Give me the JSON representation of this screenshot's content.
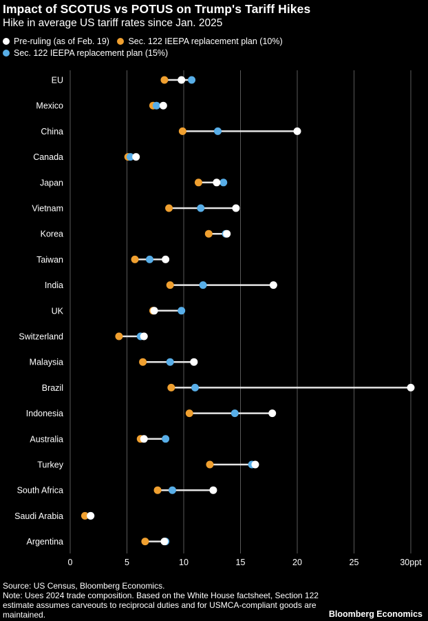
{
  "colors": {
    "background": "#000000",
    "text": "#ffffff",
    "grid": "#5a5a5a",
    "connector": "#e6e6e6",
    "pre_ruling": "#ffffff",
    "sec122_10": "#f0a030",
    "sec122_15": "#58aee8"
  },
  "chart_data": {
    "type": "dot",
    "title": "Impact of SCOTUS vs POTUS on Trump's Tariff Hikes",
    "subtitle": "Hike in average US tariff rates since Jan. 2025",
    "xlim": [
      0,
      30
    ],
    "x_ticks": [
      {
        "value": 0,
        "label": "0"
      },
      {
        "value": 5,
        "label": "5"
      },
      {
        "value": 10,
        "label": "10"
      },
      {
        "value": 15,
        "label": "15"
      },
      {
        "value": 20,
        "label": "20"
      },
      {
        "value": 25,
        "label": "25"
      },
      {
        "value": 30,
        "label": "30ppt"
      }
    ],
    "grid": true,
    "legend_position": "top",
    "categories": [
      "EU",
      "Mexico",
      "China",
      "Canada",
      "Japan",
      "Vietnam",
      "Korea",
      "Taiwan",
      "India",
      "UK",
      "Switzerland",
      "Malaysia",
      "Brazil",
      "Indonesia",
      "Australia",
      "Turkey",
      "South Africa",
      "Saudi Arabia",
      "Argentina"
    ],
    "series": [
      {
        "name": "Pre-ruling (as of Feb. 19)",
        "color_key": "pre_ruling",
        "values": [
          9.8,
          8.2,
          20.0,
          5.8,
          12.9,
          14.6,
          13.8,
          8.4,
          17.9,
          7.4,
          6.5,
          10.9,
          30.0,
          17.8,
          6.5,
          16.3,
          12.6,
          1.8,
          8.3
        ]
      },
      {
        "name": "Sec. 122 IEEPA replacement plan (10%)",
        "color_key": "sec122_10",
        "values": [
          8.3,
          7.3,
          9.9,
          5.1,
          11.3,
          8.7,
          12.2,
          5.7,
          8.8,
          7.3,
          4.3,
          6.4,
          8.9,
          10.5,
          6.2,
          12.3,
          7.7,
          1.3,
          6.6
        ]
      },
      {
        "name": "Sec. 122 IEEPA replacement plan (15%)",
        "color_key": "sec122_15",
        "values": [
          10.7,
          7.6,
          13.0,
          5.3,
          13.5,
          11.5,
          13.7,
          7.0,
          11.7,
          9.8,
          6.2,
          8.8,
          11.0,
          14.5,
          8.4,
          16.0,
          9.0,
          1.8,
          8.4
        ]
      }
    ]
  },
  "footer": {
    "source": "Source: US Census, Bloomberg Economics.",
    "note": "Note: Uses 2024 trade composition. Based on the White House factsheet, Section 122 estimate assumes carveouts to reciprocal duties and for USMCA-compliant goods are maintained.",
    "brand": "Bloomberg Economics"
  }
}
